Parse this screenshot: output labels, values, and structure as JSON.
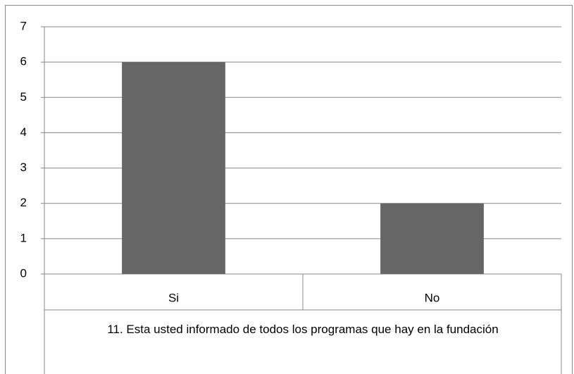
{
  "chart_data": {
    "type": "bar",
    "x_label": "11. Esta usted informado de todos los programas que hay en la fundación",
    "categories": [
      "Si",
      "No"
    ],
    "values": [
      6,
      2
    ],
    "color": "#666666",
    "ylim": [
      0,
      7
    ],
    "yticks": [
      0,
      1,
      2,
      3,
      4,
      5,
      6,
      7
    ],
    "grid": true
  }
}
